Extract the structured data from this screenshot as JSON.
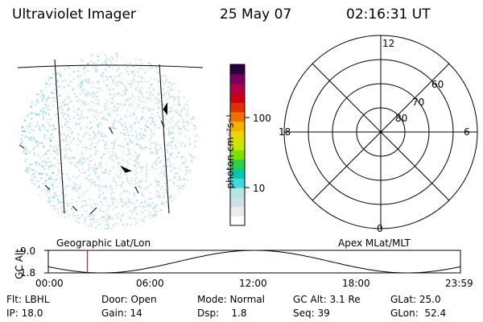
{
  "header": {
    "title": "Ultraviolet Imager",
    "date": "25 May 07",
    "time": "02:16:31 UT"
  },
  "colorbar": {
    "unit_label": "photon cm⁻²s⁻¹",
    "ticks": [
      "100",
      "10"
    ],
    "colors": [
      "#ffffff",
      "#e8eef0",
      "#d0e0e6",
      "#b4e6e8",
      "#40d8d8",
      "#00c8a8",
      "#30d048",
      "#7ce000",
      "#c8e800",
      "#e8d800",
      "#f8b000",
      "#f07000",
      "#e03000",
      "#c80010",
      "#b0004c",
      "#78005c",
      "#2c0040"
    ]
  },
  "polar": {
    "mlt_labels": [
      "12",
      "18",
      "6",
      "0"
    ],
    "lat_labels": [
      "60",
      "70",
      "80"
    ]
  },
  "panel_labels": {
    "left": "Geographic Lat/Lon",
    "right": "Apex MLat/MLT"
  },
  "timeline": {
    "ylabel": "GC Alt",
    "y_ticks": [
      "9.0",
      "1.8"
    ],
    "x_ticks": [
      "00:00",
      "06:00",
      "12:00",
      "18:00",
      "23:59"
    ],
    "marker_color": "#e00000"
  },
  "info": {
    "row1": [
      "Flt: LBHL",
      "Door: Open",
      "Mode: Normal",
      "GC Alt: 3.1 Re",
      "GLat: 25.0"
    ],
    "row2": [
      "IP: 18.0",
      "Gain: 14",
      "Dsp:    1.8",
      "Seq: 39",
      "GLon:  52.4"
    ]
  }
}
